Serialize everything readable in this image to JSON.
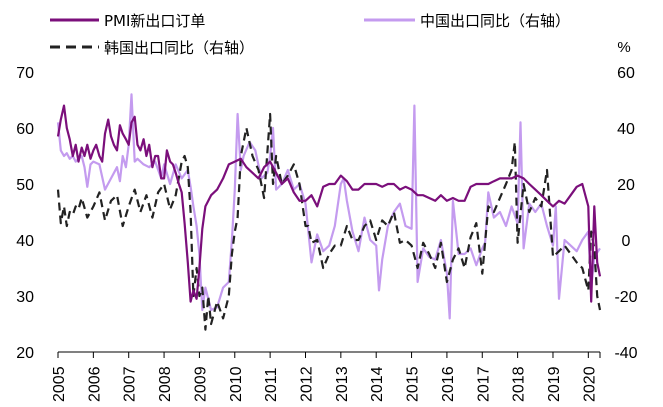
{
  "chart_data": {
    "type": "line",
    "title": "",
    "legend": [
      {
        "label": "PMI新出口订单",
        "color": "#7B0F7B",
        "style": "solid",
        "axis": "left"
      },
      {
        "label": "中国出口同比（右轴）",
        "color": "#C49BEF",
        "style": "solid",
        "axis": "right"
      },
      {
        "label": "韩国出口同比（右轴）",
        "color": "#222222",
        "style": "dashed",
        "axis": "right"
      }
    ],
    "right_unit": "%",
    "left_axis": {
      "min": 20,
      "max": 70,
      "ticks": [
        20,
        30,
        40,
        50,
        60,
        70
      ]
    },
    "right_axis": {
      "min": -40,
      "max": 60,
      "ticks": [
        -40,
        -20,
        0,
        20,
        40,
        60
      ]
    },
    "x_axis": {
      "min": 2005.0,
      "max": 2020.33,
      "tick_labels": [
        "2005",
        "2006",
        "2007",
        "2008",
        "2009",
        "2010",
        "2011",
        "2012",
        "2013",
        "2014",
        "2015",
        "2016",
        "2017",
        "2018",
        "2019",
        "2020"
      ]
    },
    "series": [
      {
        "name": "PMI新出口订单",
        "axis": "left",
        "x": [
          2005.0,
          2005.08,
          2005.17,
          2005.25,
          2005.33,
          2005.42,
          2005.5,
          2005.58,
          2005.67,
          2005.75,
          2005.83,
          2005.92,
          2006.0,
          2006.08,
          2006.17,
          2006.25,
          2006.33,
          2006.42,
          2006.5,
          2006.58,
          2006.67,
          2006.75,
          2006.83,
          2006.92,
          2007.0,
          2007.08,
          2007.17,
          2007.25,
          2007.33,
          2007.42,
          2007.5,
          2007.58,
          2007.67,
          2007.75,
          2007.83,
          2007.92,
          2008.0,
          2008.08,
          2008.17,
          2008.25,
          2008.33,
          2008.42,
          2008.5,
          2008.58,
          2008.67,
          2008.75,
          2008.83,
          2008.92,
          2009.0,
          2009.08,
          2009.17,
          2009.25,
          2009.33,
          2009.5,
          2009.67,
          2009.83,
          2010.0,
          2010.17,
          2010.33,
          2010.5,
          2010.67,
          2010.83,
          2011.0,
          2011.17,
          2011.33,
          2011.5,
          2011.67,
          2011.83,
          2012.0,
          2012.17,
          2012.33,
          2012.5,
          2012.67,
          2012.83,
          2013.0,
          2013.17,
          2013.33,
          2013.5,
          2013.67,
          2013.83,
          2014.0,
          2014.17,
          2014.33,
          2014.5,
          2014.67,
          2014.83,
          2015.0,
          2015.17,
          2015.33,
          2015.5,
          2015.67,
          2015.83,
          2016.0,
          2016.17,
          2016.33,
          2016.5,
          2016.67,
          2016.83,
          2017.0,
          2017.17,
          2017.33,
          2017.5,
          2017.67,
          2017.83,
          2018.0,
          2018.17,
          2018.33,
          2018.5,
          2018.67,
          2018.83,
          2019.0,
          2019.17,
          2019.33,
          2019.5,
          2019.67,
          2019.83,
          2020.0,
          2020.08,
          2020.17,
          2020.25,
          2020.33
        ],
        "values": [
          58.5,
          61.5,
          64,
          60,
          58,
          55,
          57,
          54,
          56.5,
          55,
          57,
          54.5,
          56,
          57,
          55,
          54,
          59,
          61.5,
          58.5,
          57,
          56,
          60.5,
          59,
          58,
          57,
          61,
          62,
          57,
          56,
          58,
          55,
          57,
          53,
          55,
          55,
          51,
          51,
          56,
          54,
          53.5,
          52,
          50,
          48.5,
          43,
          36,
          29,
          31,
          29.5,
          35,
          42,
          46,
          47,
          48,
          49,
          51,
          53.5,
          54,
          54.5,
          53,
          52,
          51,
          53,
          54,
          52,
          50,
          51,
          48.5,
          47,
          47,
          48,
          46,
          49.5,
          50,
          50,
          51.5,
          50.5,
          49,
          49,
          50,
          50,
          50,
          49.5,
          50,
          50,
          49,
          49.5,
          49,
          48,
          48,
          47.5,
          47,
          48,
          47,
          47.5,
          47,
          47,
          49.5,
          50,
          50,
          50,
          50.5,
          51,
          51,
          51,
          51.5,
          51,
          50,
          49,
          48,
          47,
          46,
          47,
          46.5,
          48,
          49.5,
          50,
          46,
          29,
          46,
          36,
          33.5
        ]
      },
      {
        "name": "中国出口同比（右轴）",
        "axis": "right",
        "x": [
          2005.0,
          2005.08,
          2005.17,
          2005.25,
          2005.33,
          2005.42,
          2005.5,
          2005.58,
          2005.67,
          2005.75,
          2005.83,
          2005.92,
          2006.0,
          2006.17,
          2006.33,
          2006.5,
          2006.67,
          2006.75,
          2006.83,
          2006.92,
          2007.0,
          2007.08,
          2007.17,
          2007.25,
          2007.42,
          2007.58,
          2007.75,
          2007.92,
          2008.0,
          2008.17,
          2008.33,
          2008.5,
          2008.67,
          2008.75,
          2008.83,
          2008.92,
          2009.0,
          2009.08,
          2009.17,
          2009.33,
          2009.5,
          2009.67,
          2009.83,
          2009.92,
          2010.0,
          2010.08,
          2010.17,
          2010.25,
          2010.42,
          2010.58,
          2010.75,
          2010.92,
          2011.0,
          2011.08,
          2011.17,
          2011.33,
          2011.5,
          2011.67,
          2011.83,
          2012.0,
          2012.17,
          2012.33,
          2012.5,
          2012.67,
          2012.83,
          2013.0,
          2013.08,
          2013.17,
          2013.33,
          2013.5,
          2013.67,
          2013.83,
          2014.0,
          2014.08,
          2014.17,
          2014.33,
          2014.5,
          2014.67,
          2014.83,
          2015.0,
          2015.08,
          2015.17,
          2015.33,
          2015.5,
          2015.67,
          2015.83,
          2016.0,
          2016.08,
          2016.17,
          2016.33,
          2016.5,
          2016.67,
          2016.83,
          2017.0,
          2017.08,
          2017.17,
          2017.33,
          2017.5,
          2017.67,
          2017.83,
          2018.0,
          2018.08,
          2018.17,
          2018.33,
          2018.5,
          2018.67,
          2018.83,
          2019.0,
          2019.08,
          2019.17,
          2019.33,
          2019.5,
          2019.67,
          2019.83,
          2020.0,
          2020.08,
          2020.17,
          2020.33
        ],
        "values": [
          42,
          32,
          30,
          31,
          29,
          30,
          28,
          29,
          30,
          26,
          19,
          27,
          28,
          27,
          18,
          22,
          26,
          21,
          30,
          26,
          34,
          52,
          28,
          29,
          27,
          26,
          28,
          22,
          27,
          20,
          27,
          22,
          25,
          19,
          12,
          5,
          -5,
          -25,
          -17,
          -25,
          -24,
          -17,
          -15,
          0,
          18,
          45,
          25,
          30,
          35,
          32,
          22,
          24,
          30,
          40,
          18,
          20,
          25,
          18,
          20,
          13,
          -8,
          2,
          -4,
          -2,
          5,
          20,
          22,
          14,
          3,
          -4,
          8,
          0,
          -2,
          -18,
          -7,
          5,
          10,
          13,
          5,
          4,
          48,
          -15,
          -3,
          -6,
          -7,
          0,
          -12,
          -28,
          14,
          -5,
          -5,
          -3,
          -9,
          -3,
          -1,
          17,
          8,
          10,
          5,
          12,
          6,
          42,
          -3,
          13,
          10,
          13,
          5,
          -2,
          12,
          -21,
          0,
          -2,
          -4,
          0,
          3,
          -17,
          -6,
          -3
        ]
      },
      {
        "name": "韩国出口同比（右轴）",
        "axis": "right",
        "x": [
          2005.0,
          2005.08,
          2005.17,
          2005.25,
          2005.33,
          2005.42,
          2005.5,
          2005.58,
          2005.67,
          2005.83,
          2006.0,
          2006.17,
          2006.33,
          2006.5,
          2006.67,
          2006.83,
          2007.0,
          2007.17,
          2007.33,
          2007.5,
          2007.67,
          2007.83,
          2008.0,
          2008.17,
          2008.33,
          2008.5,
          2008.58,
          2008.67,
          2008.75,
          2008.83,
          2008.92,
          2009.0,
          2009.08,
          2009.17,
          2009.25,
          2009.33,
          2009.5,
          2009.67,
          2009.83,
          2009.92,
          2010.0,
          2010.08,
          2010.17,
          2010.33,
          2010.5,
          2010.67,
          2010.83,
          2011.0,
          2011.08,
          2011.17,
          2011.33,
          2011.5,
          2011.67,
          2011.83,
          2012.0,
          2012.08,
          2012.17,
          2012.33,
          2012.5,
          2012.67,
          2012.83,
          2013.0,
          2013.17,
          2013.33,
          2013.5,
          2013.67,
          2013.83,
          2014.0,
          2014.17,
          2014.33,
          2014.5,
          2014.67,
          2014.83,
          2015.0,
          2015.17,
          2015.33,
          2015.5,
          2015.67,
          2015.83,
          2016.0,
          2016.17,
          2016.33,
          2016.5,
          2016.67,
          2016.83,
          2017.0,
          2017.17,
          2017.33,
          2017.5,
          2017.67,
          2017.83,
          2017.92,
          2018.0,
          2018.17,
          2018.33,
          2018.5,
          2018.67,
          2018.83,
          2019.0,
          2019.17,
          2019.33,
          2019.5,
          2019.67,
          2019.83,
          2020.0,
          2020.08,
          2020.17,
          2020.25,
          2020.33
        ],
        "values": [
          18,
          6,
          12,
          5,
          10,
          9,
          12,
          11,
          15,
          8,
          12,
          17,
          7,
          14,
          16,
          5,
          12,
          18,
          10,
          16,
          8,
          17,
          20,
          11,
          16,
          28,
          30,
          26,
          10,
          -20,
          -10,
          -20,
          -17,
          -32,
          -20,
          -30,
          -22,
          -28,
          -20,
          -5,
          3,
          8,
          30,
          40,
          30,
          25,
          15,
          45,
          20,
          30,
          20,
          23,
          27,
          20,
          5,
          5,
          -1,
          0,
          -10,
          -5,
          -2,
          -2,
          5,
          0,
          0,
          5,
          7,
          0,
          7,
          5,
          10,
          -1,
          0,
          -2,
          -10,
          -1,
          -5,
          -10,
          -1,
          -15,
          -7,
          -3,
          -10,
          1,
          6,
          -12,
          12,
          10,
          15,
          20,
          25,
          35,
          -1,
          20,
          10,
          15,
          12,
          25,
          -6,
          -4,
          -2,
          -5,
          -8,
          -10,
          -18,
          3,
          -3,
          -20,
          -25
        ]
      }
    ]
  }
}
